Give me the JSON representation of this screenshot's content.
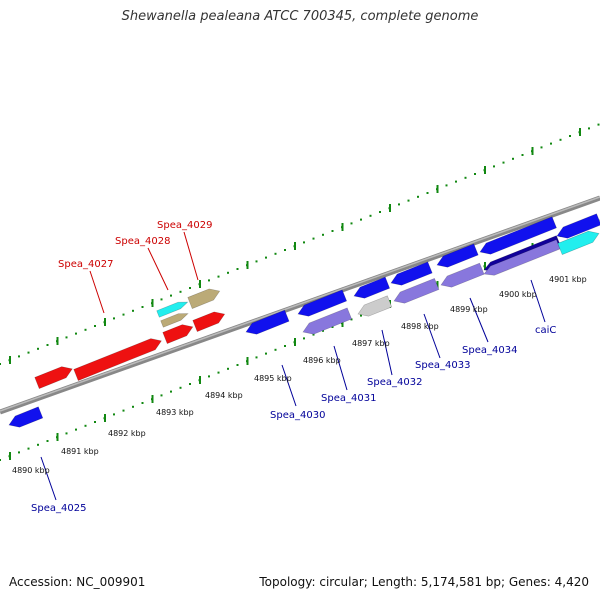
{
  "title": "Shewanella pealeana ATCC 700345, complete genome",
  "footer": {
    "accession": "Accession: NC_009901",
    "summary": "Topology: circular; Length: 5,174,581 bp; Genes: 4,420"
  },
  "colors": {
    "forward_strand": "#ee1111",
    "reverse_strand": "#1111ee",
    "reverse_light": "#8877dd",
    "reverse_dark": "#110099",
    "cyan": "#22eeee",
    "khaki": "#bbaa77",
    "gray": "#cccccc",
    "axis": "#888888",
    "ticks": "#118811",
    "label_forward": "#cc0000",
    "label_reverse": "#000099"
  },
  "kbp_ticks": [
    {
      "label": "4890 kbp"
    },
    {
      "label": "4891 kbp"
    },
    {
      "label": "4892 kbp"
    },
    {
      "label": "4893 kbp"
    },
    {
      "label": "4894 kbp"
    },
    {
      "label": "4895 kbp"
    },
    {
      "label": "4896 kbp"
    },
    {
      "label": "4897 kbp"
    },
    {
      "label": "4898 kbp"
    },
    {
      "label": "4899 kbp"
    },
    {
      "label": "4900 kbp"
    },
    {
      "label": "4901 kbp"
    }
  ],
  "forward_genes": [
    {
      "label": "Spea_4027"
    },
    {
      "label": "Spea_4028"
    },
    {
      "label": "Spea_4029"
    }
  ],
  "reverse_genes": [
    {
      "label": "Spea_4025"
    },
    {
      "label": "Spea_4030"
    },
    {
      "label": "Spea_4031"
    },
    {
      "label": "Spea_4032"
    },
    {
      "label": "Spea_4033"
    },
    {
      "label": "Spea_4034"
    },
    {
      "label": "caiC"
    }
  ]
}
